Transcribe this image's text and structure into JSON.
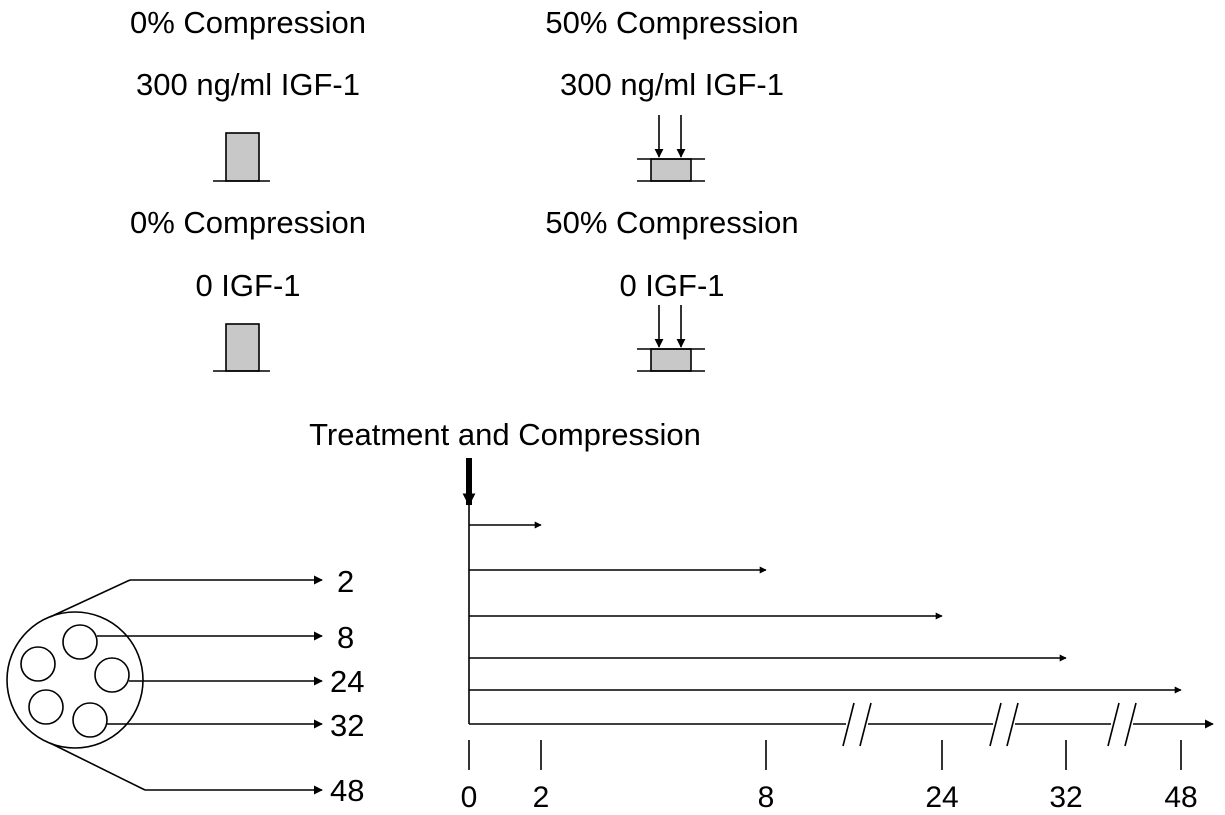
{
  "conditions": [
    {
      "compression": "0% Compression",
      "treatment": "300 ng/ml IGF-1"
    },
    {
      "compression": "50% Compression",
      "treatment": "300 ng/ml IGF-1"
    },
    {
      "compression": "0% Compression",
      "treatment": "0 IGF-1"
    },
    {
      "compression": "50% Compression",
      "treatment": "0 IGF-1"
    }
  ],
  "timeline": {
    "title": "Treatment and Compression",
    "ticks": [
      "0",
      "2",
      "8",
      "24",
      "32",
      "48"
    ]
  },
  "samples": {
    "timepoints": [
      "2",
      "8",
      "24",
      "32",
      "48"
    ]
  }
}
